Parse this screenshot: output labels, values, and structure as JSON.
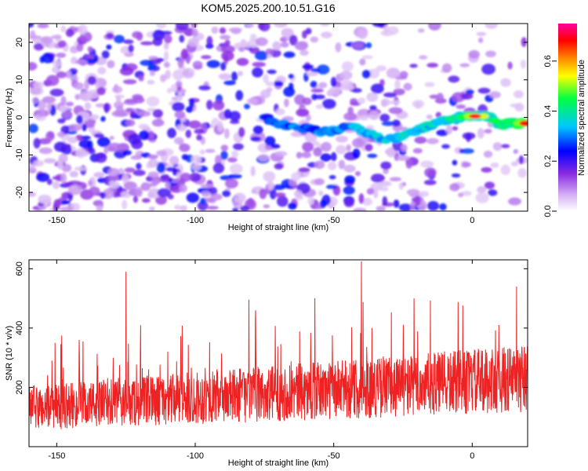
{
  "title": "KOM5.2025.200.10.51.G16",
  "chart_data": [
    {
      "type": "heatmap",
      "xlabel": "Height of straight line (km)",
      "ylabel": "Frequency (Hz)",
      "xlim": [
        -160,
        20
      ],
      "ylim": [
        -25,
        25
      ],
      "xticks": [
        -150,
        -100,
        -50,
        0
      ],
      "yticks": [
        -20,
        -10,
        0,
        10,
        20
      ],
      "colorbar": {
        "label": "Normalized spectral amplitude",
        "range": [
          0,
          0.75
        ],
        "ticks": [
          "0.0",
          "0.2",
          "0.4",
          "0.6"
        ],
        "colormap": "rainbow (white-purple-blue-cyan-green-yellow-red-magenta)"
      },
      "ridge": {
        "description": "dominant frequency track",
        "points": [
          {
            "x": -75,
            "y": 0
          },
          {
            "x": -68,
            "y": -2
          },
          {
            "x": -60,
            "y": -3
          },
          {
            "x": -52,
            "y": -4
          },
          {
            "x": -45,
            "y": -2
          },
          {
            "x": -38,
            "y": -4
          },
          {
            "x": -32,
            "y": -6
          },
          {
            "x": -25,
            "y": -5
          },
          {
            "x": -18,
            "y": -3
          },
          {
            "x": -12,
            "y": -1
          },
          {
            "x": -5,
            "y": 0
          },
          {
            "x": 0,
            "y": 0.5
          },
          {
            "x": 5,
            "y": 0.5
          },
          {
            "x": 10,
            "y": -2
          },
          {
            "x": 15,
            "y": -1.5
          },
          {
            "x": 19,
            "y": -1.5
          }
        ],
        "peak": {
          "x": 1,
          "y": 0.3,
          "amplitude": 0.75
        }
      }
    },
    {
      "type": "line",
      "xlabel": "Height of straight line (km)",
      "ylabel": "SNR (10 * v/v)",
      "xlim": [
        -160,
        20
      ],
      "ylim": [
        0,
        630
      ],
      "xticks": [
        -150,
        -100,
        -50,
        0
      ],
      "yticks": [
        200,
        400,
        600
      ],
      "color": "#ee2222",
      "trend": {
        "start": [
          -160,
          130
        ],
        "end": [
          20,
          230
        ]
      },
      "spikes": [
        {
          "x": -125,
          "y": 590
        },
        {
          "x": -40,
          "y": 625
        },
        {
          "x": -21,
          "y": 500
        },
        {
          "x": 16,
          "y": 540
        }
      ]
    }
  ]
}
